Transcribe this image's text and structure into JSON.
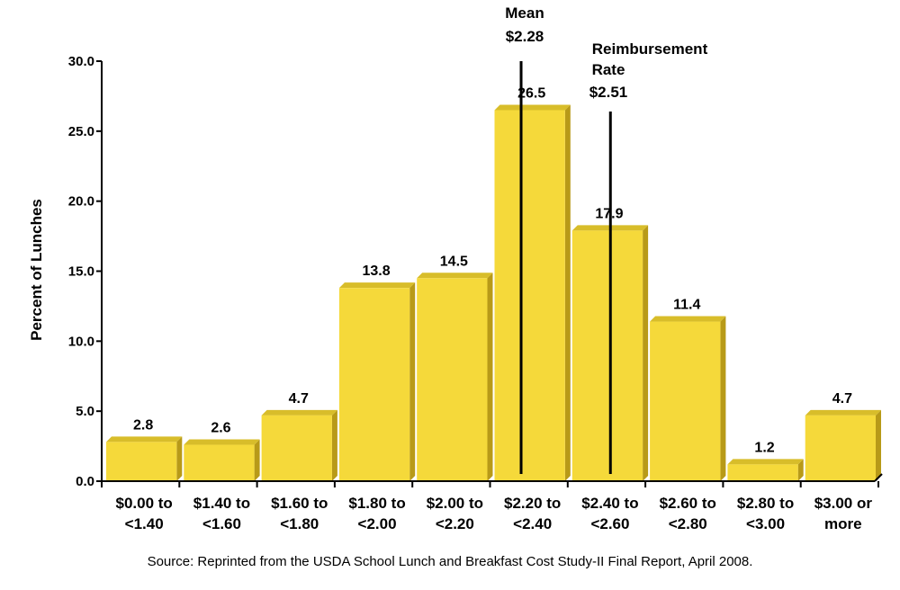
{
  "chart_data": {
    "type": "bar",
    "categories": [
      [
        "$0.00 to",
        "<1.40"
      ],
      [
        "$1.40 to",
        "<1.60"
      ],
      [
        "$1.60 to",
        "<1.80"
      ],
      [
        "$1.80 to",
        "<2.00"
      ],
      [
        "$2.00 to",
        "<2.20"
      ],
      [
        "$2.20 to",
        "<2.40"
      ],
      [
        "$2.40 to",
        "<2.60"
      ],
      [
        "$2.60 to",
        "<2.80"
      ],
      [
        "$2.80 to",
        "<3.00"
      ],
      [
        "$3.00 or",
        "more"
      ]
    ],
    "values": [
      2.8,
      2.6,
      4.7,
      13.8,
      14.5,
      26.5,
      17.9,
      11.4,
      1.2,
      4.7
    ],
    "value_labels": [
      "2.8",
      "2.6",
      "4.7",
      "13.8",
      "14.5",
      "26.5",
      "17.9",
      "11.4",
      "1.2",
      "4.7"
    ],
    "ylabel": "Percent of Lunches",
    "ylim": [
      0,
      30
    ],
    "yticks": [
      0,
      5,
      10,
      15,
      20,
      25,
      30
    ],
    "ytick_labels": [
      "0.0",
      "5.0",
      "10.0",
      "15.0",
      "20.0",
      "25.0",
      "30.0"
    ],
    "grid": false,
    "bar_color": "#f5d93a",
    "annotations": [
      {
        "name": "mean",
        "lines": [
          "Mean",
          "$2.28"
        ],
        "x_value": 2.28
      },
      {
        "name": "reimbursement-rate",
        "lines": [
          "Reimbursement",
          "Rate",
          "$2.51"
        ],
        "x_value": 2.51
      }
    ]
  },
  "source": "Source: Reprinted from the USDA School Lunch and Breakfast Cost Study-II Final Report, April 2008."
}
